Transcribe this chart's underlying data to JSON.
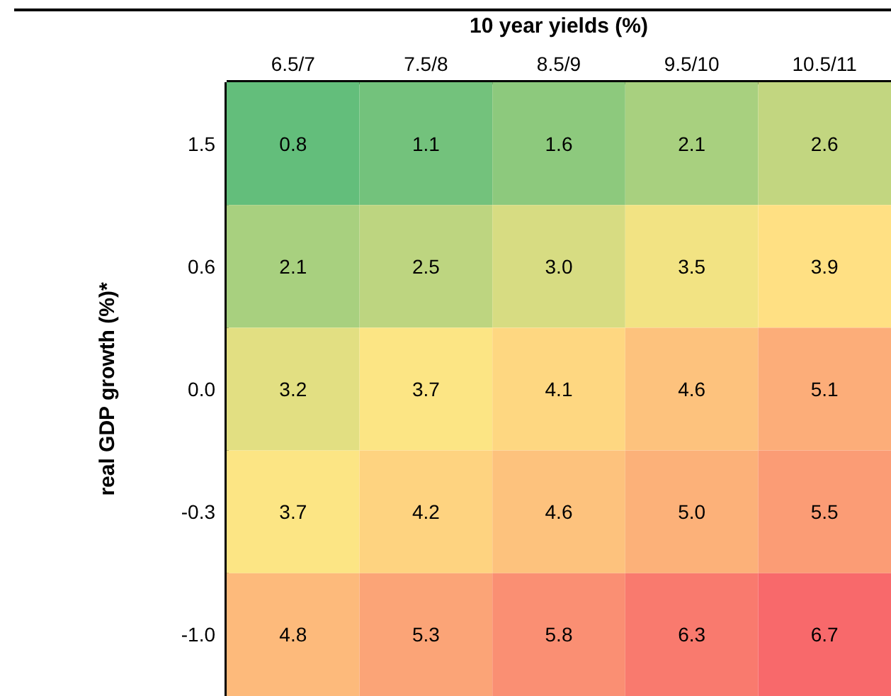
{
  "chart_data": {
    "type": "heatmap",
    "xlabel": "10 year yields (%)",
    "ylabel": "real GDP growth (%)*",
    "categories": [
      "6.5/7",
      "7.5/8",
      "8.5/9",
      "9.5/10",
      "10.5/11"
    ],
    "y_categories": [
      "1.5",
      "0.6",
      "0.0",
      "-0.3",
      "-1.0"
    ],
    "cells": [
      [
        0.8,
        1.1,
        1.6,
        2.1,
        2.6
      ],
      [
        2.1,
        2.5,
        3.0,
        3.5,
        3.9
      ],
      [
        3.2,
        3.7,
        4.1,
        4.6,
        5.1
      ],
      [
        3.7,
        4.2,
        4.6,
        5.0,
        5.5
      ],
      [
        4.8,
        5.3,
        5.8,
        6.3,
        6.7
      ]
    ],
    "cell_labels": [
      [
        "0.8",
        "1.1",
        "1.6",
        "2.1",
        "2.6"
      ],
      [
        "2.1",
        "2.5",
        "3.0",
        "3.5",
        "3.9"
      ],
      [
        "3.2",
        "3.7",
        "4.1",
        "4.6",
        "5.1"
      ],
      [
        "3.7",
        "4.2",
        "4.6",
        "5.0",
        "5.5"
      ],
      [
        "4.8",
        "5.3",
        "5.8",
        "6.3",
        "6.7"
      ]
    ]
  }
}
